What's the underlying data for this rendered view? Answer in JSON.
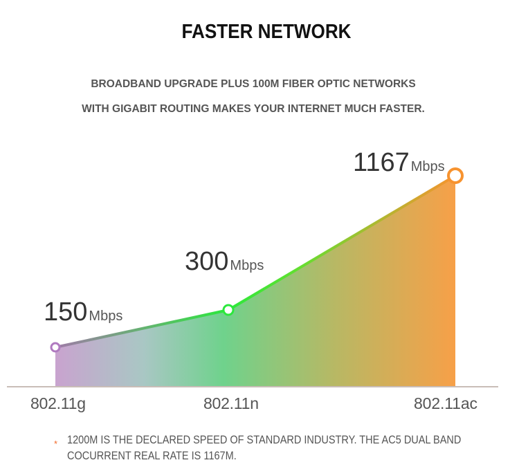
{
  "header": {
    "title": "FASTER NETWORK",
    "subtitle_line1": "BROADBAND UPGRADE PLUS 100M FIBER OPTIC NETWORKS",
    "subtitle_line2": "WITH GIGABIT ROUTING MAKES YOUR INTERNET MUCH FASTER."
  },
  "chart_data": {
    "type": "area",
    "categories": [
      "802.11g",
      "802.11n",
      "802.11ac"
    ],
    "values": [
      150,
      300,
      1167
    ],
    "unit": "Mbps",
    "value_labels": [
      "150",
      "300",
      "1167"
    ],
    "colors": [
      "#b07ac0",
      "#2be83c",
      "#f7932f"
    ],
    "grid": false
  },
  "footnote": {
    "marker": "*",
    "text": "1200M IS THE DECLARED SPEED OF STANDARD INDUSTRY. THE AC5 DUAL BAND COCURRENT REAL RATE IS 1167M."
  }
}
